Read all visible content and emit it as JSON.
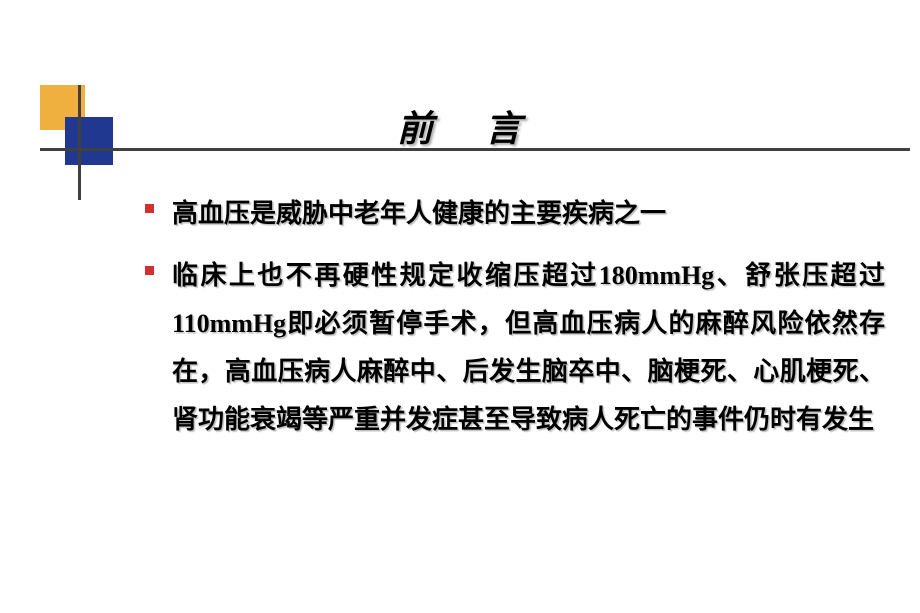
{
  "slide": {
    "title_part1": "前",
    "title_part2": "言",
    "title_fontsize": 36,
    "title_color": "#000000",
    "bullets": [
      {
        "text": "高血压是威胁中老年人健康的主要疾病之一"
      },
      {
        "text": "临床上也不再硬性规定收缩压超过180mmHg、舒张压超过110mmHg即必须暂停手术，但高血压病人的麻醉风险依然存在，高血压病人麻醉中、后发生脑卒中、脑梗死、心肌梗死、肾功能衰竭等严重并发症甚至导致病人死亡的事件仍时有发生"
      }
    ],
    "body_fontsize": 26,
    "body_lineheight": 1.85,
    "bullet_color": "#d03030",
    "decoration": {
      "yellow": "#f0b040",
      "blue": "#203890",
      "line_color": "#404040"
    },
    "background_color": "#ffffff"
  }
}
